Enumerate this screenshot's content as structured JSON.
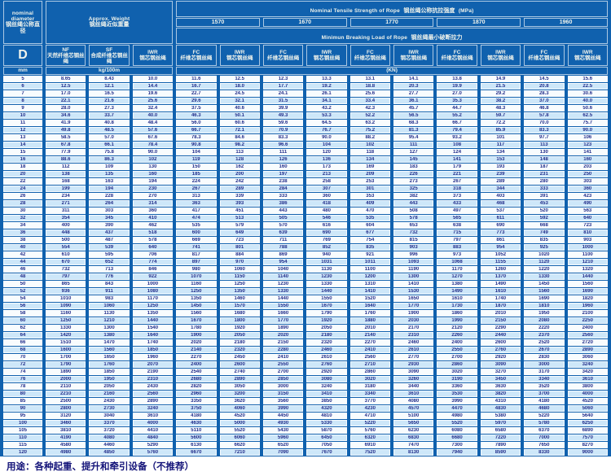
{
  "page": {
    "footer_note": "用途：各种起重、提升和牵引设备（不推荐）"
  },
  "colors": {
    "table_background_blue": "#1061ae",
    "stripe_light_blue": "#cde7f9",
    "stripe_white": "#f8fcfe",
    "data_text_navy": "#232e8b",
    "header_text": "#eff3ec",
    "footer_text_navy": "#15157a"
  },
  "header": {
    "diameter": {
      "en": "nominal diameter",
      "zh": "钢丝绳公称直径"
    },
    "weight": {
      "en": "Approx. Weight",
      "zh": "钢丝绳近似重量"
    },
    "tensile": {
      "en": "Nominal Tensile Strength of Rope",
      "zh": "钢丝绳公称抗拉强度",
      "unit": "(MPa)"
    },
    "breaking": {
      "en": "Minimun Breaking Load of Rope",
      "zh": "钢丝绳最小破断拉力"
    },
    "strengths": [
      "1570",
      "1670",
      "1770",
      "1870",
      "1960"
    ],
    "d_label": "D",
    "cols": {
      "nf": {
        "abbr": "NF",
        "zh": "天然纤维芯钢丝绳"
      },
      "sf": {
        "abbr": "SF",
        "zh": "合成纤维芯钢丝绳"
      },
      "iwr": {
        "abbr": "IWR",
        "zh": "钢芯钢丝绳"
      },
      "fc": {
        "abbr": "FC",
        "zh": "纤维芯钢丝绳"
      }
    },
    "units": {
      "mm": "mm",
      "weight": "kg/100m",
      "load": "(KN)"
    }
  },
  "chart_data": {
    "type": "table",
    "title": "Wire rope nominal diameter, approximate weight and minimum breaking load by tensile strength",
    "columns": [
      "D (mm)",
      "NF kg/100m",
      "SF kg/100m",
      "IWR kg/100m",
      "1570 FC",
      "1570 IWR",
      "1670 FC",
      "1670 IWR",
      "1770 FC",
      "1770 IWR",
      "1870 FC",
      "1870 IWR",
      "1960 FC",
      "1960 IWR"
    ],
    "load_unit": "KN",
    "rows": [
      [
        "5",
        "8.65",
        "8.43",
        "10.0",
        "11.6",
        "12.5",
        "12.3",
        "13.3",
        "13.1",
        "14.1",
        "13.8",
        "14.9",
        "14.5",
        "15.6"
      ],
      [
        "6",
        "12.5",
        "12.1",
        "14.4",
        "16.7",
        "18.0",
        "17.7",
        "19.2",
        "18.8",
        "20.3",
        "19.9",
        "21.5",
        "20.8",
        "22.5"
      ],
      [
        "7",
        "17.0",
        "16.5",
        "19.6",
        "22.7",
        "24.5",
        "24.1",
        "26.1",
        "25.6",
        "27.7",
        "27.0",
        "29.2",
        "28.3",
        "30.6"
      ],
      [
        "8",
        "22.1",
        "21.6",
        "25.6",
        "29.6",
        "32.1",
        "31.5",
        "34.1",
        "33.4",
        "36.1",
        "35.3",
        "38.2",
        "37.0",
        "40.0"
      ],
      [
        "9",
        "28.0",
        "27.3",
        "32.4",
        "37.5",
        "40.6",
        "39.9",
        "43.2",
        "42.3",
        "45.7",
        "44.7",
        "48.3",
        "46.8",
        "50.6"
      ],
      [
        "10",
        "34.6",
        "33.7",
        "40.0",
        "46.3",
        "50.1",
        "49.3",
        "53.3",
        "52.2",
        "56.5",
        "55.2",
        "59.7",
        "57.8",
        "62.5"
      ],
      [
        "11",
        "41.9",
        "40.8",
        "48.4",
        "56.0",
        "60.6",
        "59.6",
        "64.5",
        "63.2",
        "68.3",
        "66.7",
        "72.2",
        "70.0",
        "75.7"
      ],
      [
        "12",
        "49.8",
        "48.5",
        "57.6",
        "66.7",
        "72.1",
        "70.9",
        "76.7",
        "75.2",
        "81.3",
        "79.4",
        "85.9",
        "83.3",
        "90.0"
      ],
      [
        "13",
        "58.5",
        "57.0",
        "67.6",
        "78.3",
        "84.6",
        "83.3",
        "90.0",
        "88.2",
        "95.4",
        "93.2",
        "101",
        "97.7",
        "106"
      ],
      [
        "14",
        "67.8",
        "66.1",
        "78.4",
        "90.8",
        "98.2",
        "96.6",
        "104",
        "102",
        "111",
        "108",
        "117",
        "113",
        "123"
      ],
      [
        "15",
        "77.9",
        "75.8",
        "90.0",
        "104",
        "113",
        "111",
        "120",
        "118",
        "127",
        "124",
        "134",
        "130",
        "141"
      ],
      [
        "16",
        "88.6",
        "86.3",
        "102",
        "119",
        "128",
        "126",
        "136",
        "134",
        "145",
        "141",
        "153",
        "148",
        "160"
      ],
      [
        "18",
        "112",
        "109",
        "130",
        "150",
        "162",
        "160",
        "173",
        "169",
        "183",
        "179",
        "193",
        "187",
        "203"
      ],
      [
        "20",
        "138",
        "135",
        "160",
        "185",
        "200",
        "197",
        "213",
        "209",
        "226",
        "221",
        "239",
        "231",
        "250"
      ],
      [
        "22",
        "168",
        "163",
        "194",
        "224",
        "242",
        "238",
        "258",
        "253",
        "273",
        "267",
        "289",
        "280",
        "303"
      ],
      [
        "24",
        "199",
        "194",
        "230",
        "267",
        "289",
        "284",
        "307",
        "301",
        "325",
        "318",
        "344",
        "333",
        "360"
      ],
      [
        "26",
        "234",
        "228",
        "270",
        "313",
        "339",
        "333",
        "360",
        "353",
        "382",
        "373",
        "403",
        "391",
        "423"
      ],
      [
        "28",
        "271",
        "264",
        "314",
        "363",
        "393",
        "386",
        "418",
        "409",
        "443",
        "433",
        "468",
        "453",
        "490"
      ],
      [
        "30",
        "311",
        "303",
        "360",
        "417",
        "451",
        "443",
        "480",
        "470",
        "508",
        "497",
        "537",
        "520",
        "563"
      ],
      [
        "32",
        "354",
        "345",
        "410",
        "474",
        "513",
        "505",
        "546",
        "535",
        "578",
        "565",
        "611",
        "592",
        "640"
      ],
      [
        "34",
        "400",
        "390",
        "462",
        "535",
        "579",
        "570",
        "616",
        "604",
        "653",
        "638",
        "690",
        "668",
        "723"
      ],
      [
        "36",
        "448",
        "437",
        "518",
        "600",
        "649",
        "639",
        "690",
        "677",
        "732",
        "715",
        "773",
        "749",
        "810"
      ],
      [
        "38",
        "500",
        "487",
        "578",
        "669",
        "723",
        "711",
        "769",
        "754",
        "815",
        "797",
        "861",
        "835",
        "903"
      ],
      [
        "40",
        "554",
        "539",
        "640",
        "741",
        "801",
        "788",
        "852",
        "835",
        "903",
        "883",
        "954",
        "925",
        "1000"
      ],
      [
        "42",
        "610",
        "595",
        "706",
        "817",
        "884",
        "869",
        "940",
        "921",
        "996",
        "973",
        "1052",
        "1020",
        "1100"
      ],
      [
        "44",
        "670",
        "652",
        "774",
        "897",
        "970",
        "954",
        "1031",
        "1011",
        "1093",
        "1068",
        "1155",
        "1120",
        "1210"
      ],
      [
        "46",
        "732",
        "713",
        "846",
        "980",
        "1060",
        "1040",
        "1130",
        "1100",
        "1190",
        "1170",
        "1260",
        "1220",
        "1320"
      ],
      [
        "48",
        "797",
        "776",
        "922",
        "1070",
        "1150",
        "1140",
        "1230",
        "1200",
        "1300",
        "1270",
        "1370",
        "1330",
        "1440"
      ],
      [
        "50",
        "865",
        "843",
        "1000",
        "1160",
        "1250",
        "1230",
        "1330",
        "1310",
        "1410",
        "1380",
        "1490",
        "1450",
        "1560"
      ],
      [
        "52",
        "936",
        "911",
        "1080",
        "1250",
        "1350",
        "1330",
        "1440",
        "1410",
        "1530",
        "1490",
        "1610",
        "1560",
        "1690"
      ],
      [
        "54",
        "1010",
        "983",
        "1170",
        "1350",
        "1460",
        "1440",
        "1550",
        "1520",
        "1650",
        "1610",
        "1740",
        "1690",
        "1820"
      ],
      [
        "56",
        "1090",
        "1060",
        "1250",
        "1450",
        "1570",
        "1550",
        "1670",
        "1640",
        "1770",
        "1730",
        "1870",
        "1810",
        "1960"
      ],
      [
        "58",
        "1160",
        "1130",
        "1350",
        "1560",
        "1680",
        "1660",
        "1790",
        "1760",
        "1900",
        "1860",
        "2010",
        "1950",
        "2100"
      ],
      [
        "60",
        "1250",
        "1210",
        "1440",
        "1670",
        "1800",
        "1770",
        "1920",
        "1880",
        "2030",
        "1990",
        "2150",
        "2080",
        "2250"
      ],
      [
        "62",
        "1330",
        "1300",
        "1540",
        "1780",
        "1920",
        "1890",
        "2050",
        "2010",
        "2170",
        "2120",
        "2290",
        "2220",
        "2400"
      ],
      [
        "64",
        "1420",
        "1380",
        "1640",
        "1900",
        "2050",
        "2020",
        "2180",
        "2140",
        "2310",
        "2260",
        "2440",
        "2370",
        "2560"
      ],
      [
        "66",
        "1510",
        "1470",
        "1740",
        "2020",
        "2180",
        "2150",
        "2320",
        "2270",
        "2460",
        "2400",
        "2600",
        "2520",
        "2720"
      ],
      [
        "68",
        "1600",
        "1560",
        "1850",
        "2140",
        "2320",
        "2280",
        "2460",
        "2410",
        "2610",
        "2550",
        "2760",
        "2670",
        "2890"
      ],
      [
        "70",
        "1700",
        "1650",
        "1960",
        "2270",
        "2450",
        "2410",
        "2610",
        "2560",
        "2770",
        "2700",
        "2920",
        "2830",
        "3060"
      ],
      [
        "72",
        "1790",
        "1760",
        "2070",
        "2400",
        "2600",
        "2550",
        "2760",
        "2710",
        "2930",
        "2860",
        "3090",
        "3000",
        "3240"
      ],
      [
        "74",
        "1890",
        "1850",
        "2190",
        "2540",
        "2740",
        "2700",
        "2920",
        "2860",
        "3090",
        "3020",
        "3270",
        "3170",
        "3420"
      ],
      [
        "76",
        "2000",
        "1950",
        "2310",
        "2680",
        "2890",
        "2850",
        "3080",
        "3020",
        "3260",
        "3190",
        "3450",
        "3340",
        "3610"
      ],
      [
        "78",
        "2110",
        "2050",
        "2430",
        "2820",
        "3050",
        "3000",
        "3240",
        "3180",
        "3440",
        "3360",
        "3630",
        "3520",
        "3800"
      ],
      [
        "80",
        "2210",
        "2160",
        "2560",
        "2960",
        "3200",
        "3150",
        "3410",
        "3340",
        "3610",
        "3530",
        "3820",
        "3700",
        "4000"
      ],
      [
        "85",
        "2500",
        "2430",
        "2890",
        "3350",
        "3620",
        "3560",
        "3850",
        "3770",
        "4080",
        "3990",
        "4310",
        "4180",
        "4520"
      ],
      [
        "90",
        "2800",
        "2730",
        "3240",
        "3750",
        "4060",
        "3990",
        "4320",
        "4230",
        "4570",
        "4470",
        "4830",
        "4680",
        "5060"
      ],
      [
        "95",
        "3120",
        "3040",
        "3610",
        "4180",
        "4520",
        "4450",
        "4810",
        "4710",
        "5100",
        "4980",
        "5380",
        "5220",
        "5640"
      ],
      [
        "100",
        "3460",
        "3370",
        "4000",
        "4630",
        "5000",
        "4930",
        "5330",
        "5220",
        "5650",
        "5520",
        "5970",
        "5780",
        "6250"
      ],
      [
        "105",
        "3810",
        "3720",
        "4410",
        "5110",
        "5520",
        "5430",
        "5870",
        "5760",
        "6230",
        "6080",
        "6580",
        "6370",
        "6890"
      ],
      [
        "110",
        "4190",
        "4080",
        "4840",
        "5600",
        "6060",
        "5960",
        "6450",
        "6320",
        "6830",
        "6680",
        "7220",
        "7000",
        "7570"
      ],
      [
        "115",
        "4580",
        "4460",
        "5290",
        "6130",
        "6620",
        "6520",
        "7050",
        "6910",
        "7470",
        "7300",
        "7890",
        "7650",
        "8270"
      ],
      [
        "120",
        "4980",
        "4850",
        "5760",
        "6670",
        "7210",
        "7090",
        "7670",
        "7520",
        "8130",
        "7940",
        "8590",
        "8330",
        "9000"
      ]
    ]
  }
}
